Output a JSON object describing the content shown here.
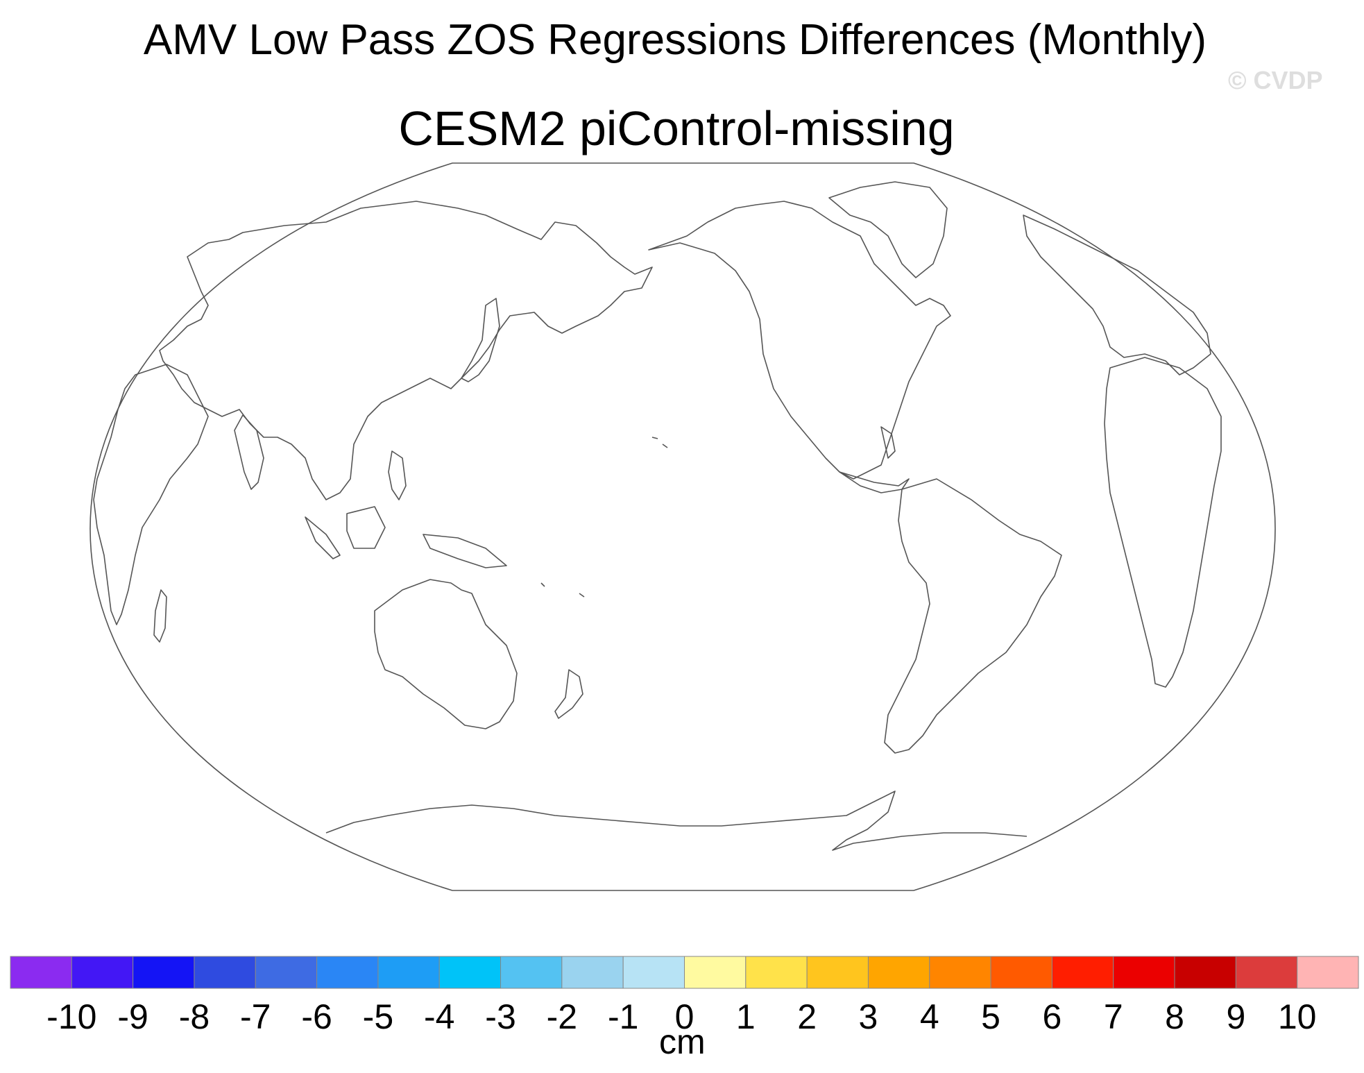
{
  "figure": {
    "title": "AMV Low Pass ZOS Regressions Differences (Monthly)",
    "subtitle": "CESM2 piControl-missing",
    "watermark": "© CVDP"
  },
  "map": {
    "projection": "Winkel tripel",
    "central_longitude": 180,
    "field": "ZOS regression difference",
    "data_shown": "none (blank map, coastlines only)"
  },
  "colorbar": {
    "unit": "cm",
    "ticks": [
      "-10",
      "-9",
      "-8",
      "-7",
      "-6",
      "-5",
      "-4",
      "-3",
      "-2",
      "-1",
      "0",
      "1",
      "2",
      "3",
      "4",
      "5",
      "6",
      "7",
      "8",
      "9",
      "10"
    ],
    "colors": [
      "#8B2BF0",
      "#4317F5",
      "#1414F5",
      "#2F4BE0",
      "#3E6BE3",
      "#2A86F5",
      "#1E9DF5",
      "#00C3F8",
      "#54C2F2",
      "#9AD3EF",
      "#B7E3F5",
      "#FFFAA0",
      "#FFE24A",
      "#FFC51E",
      "#FFA500",
      "#FF8500",
      "#FF5A00",
      "#FF1E00",
      "#EB0000",
      "#C80000",
      "#DC3C3C",
      "#FFB4B4"
    ]
  }
}
